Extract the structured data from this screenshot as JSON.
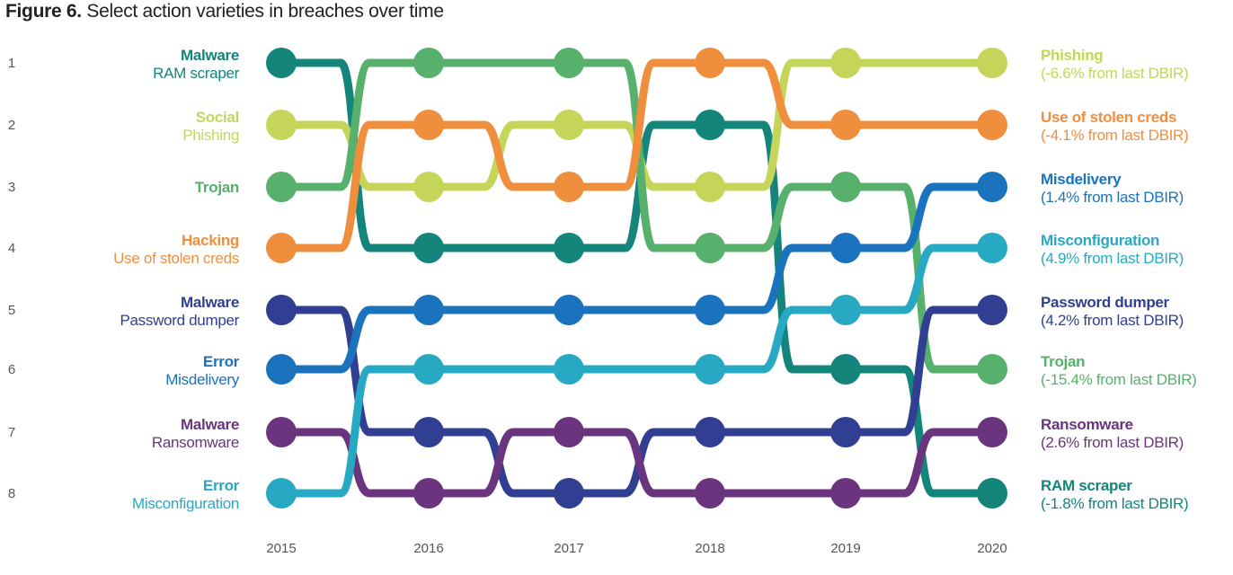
{
  "title": {
    "label": "Figure 6.",
    "text": "Select action varieties in breaches over time"
  },
  "chart_data": {
    "type": "line",
    "subtype": "bump",
    "years": [
      "2015",
      "2016",
      "2017",
      "2018",
      "2019",
      "2020"
    ],
    "ranks": [
      "1",
      "2",
      "3",
      "4",
      "5",
      "6",
      "7",
      "8"
    ],
    "series": [
      {
        "category": "Malware",
        "name": "RAM scraper",
        "color": "#13857a",
        "ranks": [
          1,
          4,
          4,
          2,
          6,
          8
        ],
        "change": "(-1.8% from last DBIR)"
      },
      {
        "category": "Social",
        "name": "Phishing",
        "color": "#c5d55a",
        "ranks": [
          2,
          3,
          2,
          3,
          1,
          1
        ],
        "change": "(-6.6% from last DBIR)"
      },
      {
        "category": "",
        "name": "Trojan",
        "color": "#57b06b",
        "ranks": [
          3,
          1,
          1,
          4,
          3,
          6
        ],
        "change": "(-15.4% from last DBIR)"
      },
      {
        "category": "Hacking",
        "name": "Use of stolen creds",
        "color": "#ef8f3e",
        "ranks": [
          4,
          2,
          3,
          1,
          2,
          2
        ],
        "change": "(-4.1% from last DBIR)"
      },
      {
        "category": "Malware",
        "name": "Password dumper",
        "color": "#303f91",
        "ranks": [
          5,
          7,
          8,
          7,
          7,
          5
        ],
        "change": "(4.2% from last DBIR)"
      },
      {
        "category": "Error",
        "name": "Misdelivery",
        "color": "#1b72bd",
        "ranks": [
          6,
          5,
          5,
          5,
          4,
          3
        ],
        "change": "(1.4% from last DBIR)"
      },
      {
        "category": "Malware",
        "name": "Ransomware",
        "color": "#6b347e",
        "ranks": [
          7,
          8,
          7,
          8,
          8,
          7
        ],
        "change": "(2.6% from last DBIR)"
      },
      {
        "category": "Error",
        "name": "Misconfiguration",
        "color": "#27a9c3",
        "ranks": [
          8,
          6,
          6,
          6,
          5,
          4
        ],
        "change": "(4.9% from last DBIR)"
      }
    ],
    "grid": false
  }
}
